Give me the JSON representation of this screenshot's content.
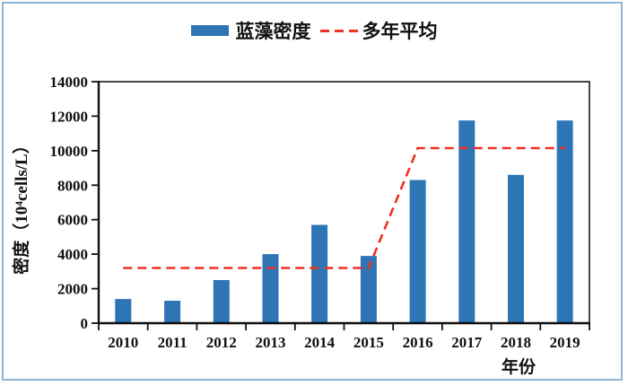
{
  "page": {
    "background": "#ffffff",
    "border_color": "#8fb5d3"
  },
  "legend": {
    "items": [
      {
        "label": "蓝藻密度",
        "swatch": "bar",
        "color": "#2e75b6"
      },
      {
        "label": "多年平均",
        "swatch": "dashed-line",
        "color": "#ee3124"
      }
    ]
  },
  "chart_data": {
    "type": "bar",
    "title": "",
    "categories": [
      "2010",
      "2011",
      "2012",
      "2013",
      "2014",
      "2015",
      "2016",
      "2017",
      "2018",
      "2019"
    ],
    "series": [
      {
        "name": "蓝藻密度",
        "type": "bar",
        "color": "#2e75b6",
        "values": [
          1400,
          1300,
          2500,
          4000,
          5700,
          3900,
          8300,
          11750,
          8600,
          11750
        ]
      },
      {
        "name": "多年平均",
        "type": "line",
        "style": "dashed",
        "color": "#ee3124",
        "values": [
          3200,
          3200,
          3200,
          3200,
          3200,
          3200,
          10150,
          10150,
          10150,
          10150
        ]
      }
    ],
    "xlabel": "年份",
    "ylabel": "密度（10⁴cells/L）",
    "ylim": [
      0,
      14000
    ],
    "yticks": [
      0,
      2000,
      4000,
      6000,
      8000,
      10000,
      12000,
      14000
    ],
    "grid": false,
    "legend_position": "top-center"
  }
}
